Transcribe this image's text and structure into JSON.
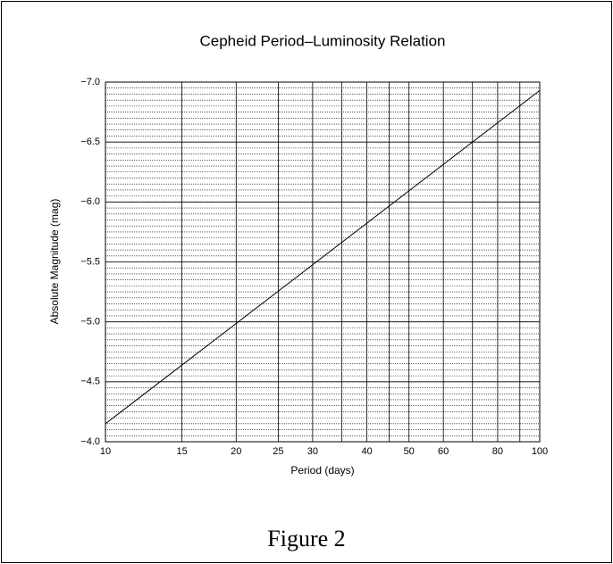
{
  "chart_data": {
    "type": "line",
    "title": "Cepheid Period–Luminosity Relation",
    "xlabel": "Period (days)",
    "ylabel": "Absolute Magnitude (mag)",
    "x": [
      10,
      100
    ],
    "values": [
      -4.15,
      -6.93
    ],
    "color": "#000000",
    "xlog": true,
    "xlim": [
      10,
      100
    ],
    "xticks": [
      10,
      15,
      20,
      25,
      30,
      40,
      50,
      60,
      80,
      100
    ],
    "xminor": [
      35,
      45,
      70,
      90
    ],
    "ylim": [
      -4,
      -7
    ],
    "yticks": [
      {
        "value": -7,
        "label": "−7.0"
      },
      {
        "value": -6.5,
        "label": "−6.5"
      },
      {
        "value": -6,
        "label": "−6.0"
      },
      {
        "value": -5.5,
        "label": "−5.5"
      },
      {
        "value": -5,
        "label": "−5.0"
      },
      {
        "value": -4.5,
        "label": "−4.5"
      },
      {
        "value": -4,
        "label": "−4.0"
      }
    ],
    "minor_grid_step": 0.05,
    "grid": true
  },
  "caption": "Figure 2"
}
